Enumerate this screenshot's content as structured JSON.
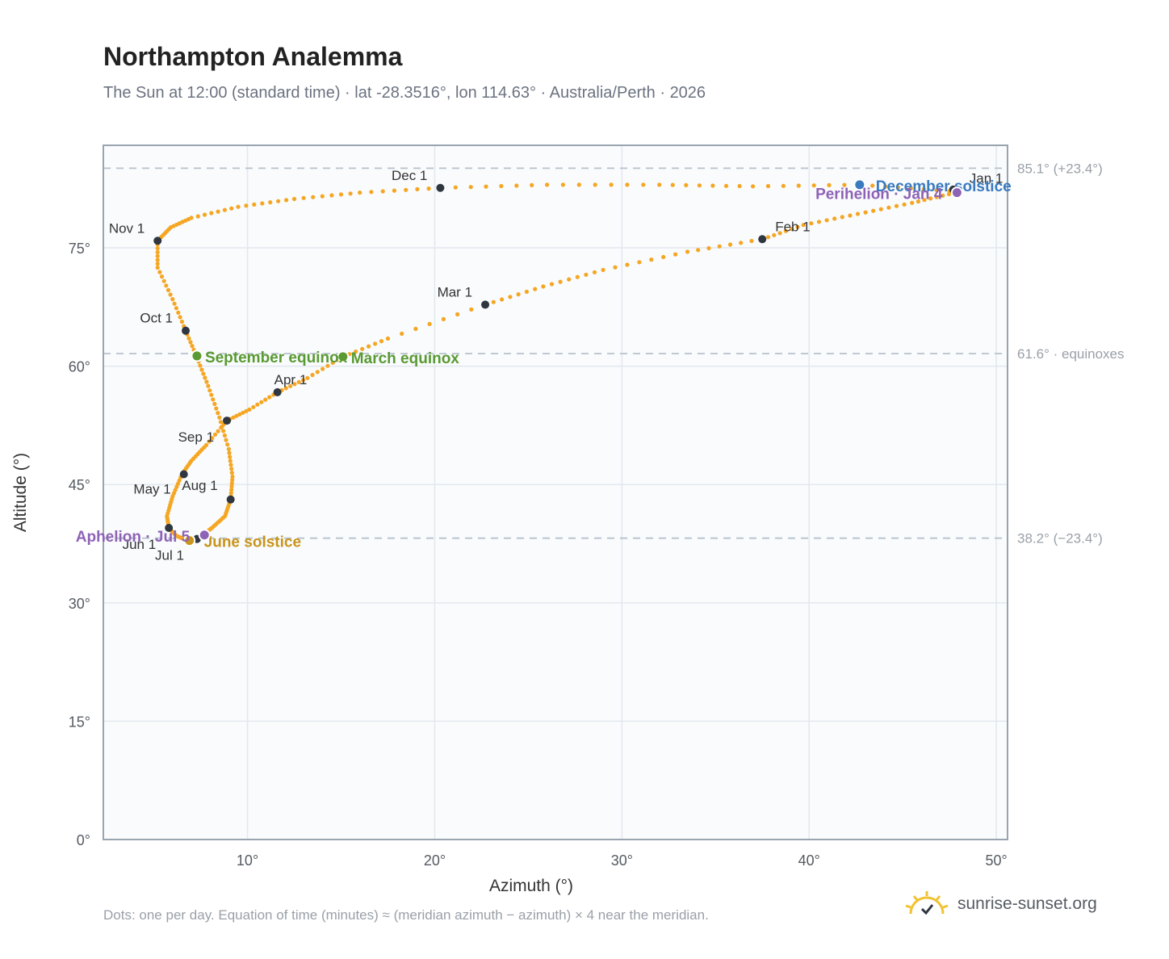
{
  "header": {
    "title": "Northampton Analemma",
    "subtitle": "The Sun at 12:00 (standard time) · lat -28.3516°, lon 114.63° · Australia/Perth · 2026"
  },
  "footer": {
    "note": "Dots: one per day. Equation of time (minutes) ≈ (meridian azimuth − azimuth) × 4 near the meridian.",
    "brand": "sunrise-sunset.org"
  },
  "colors": {
    "curve": "#f5a623",
    "month_marker": "#2f3640",
    "equinox": "#5a9a32",
    "june_solstice": "#c9951a",
    "december_solstice": "#3a7abf",
    "apsis": "#8e63b5",
    "ref_line": "#b8c2cc",
    "plot_bg": "#f9fbfd",
    "grid": "#e3e8ee",
    "frame": "#98a4b0"
  },
  "chart_data": {
    "type": "scatter",
    "xlabel": "Azimuth (°)",
    "ylabel": "Altitude (°)",
    "xlim": [
      2.3,
      50.6
    ],
    "ylim": [
      0,
      88
    ],
    "x_ticks": [
      10,
      20,
      30,
      40,
      50
    ],
    "y_ticks": [
      0,
      15,
      30,
      45,
      60,
      75
    ],
    "x_tick_labels": [
      "10°",
      "20°",
      "30°",
      "40°",
      "50°"
    ],
    "y_tick_labels": [
      "0°",
      "15°",
      "30°",
      "45°",
      "60°",
      "75°"
    ],
    "grid": true,
    "reference_lines": [
      {
        "y": 85.1,
        "label": "85.1° (+23.4°)"
      },
      {
        "y": 61.6,
        "label": "61.6° · equinoxes"
      },
      {
        "y": 38.2,
        "label": "38.2° (−23.4°)"
      }
    ],
    "series": [
      {
        "points": [
          [
            47.8,
            82.0
          ],
          [
            45.5,
            80.7
          ],
          [
            42.6,
            79.3
          ],
          [
            39.7,
            77.9
          ],
          [
            37.5,
            76.1
          ],
          [
            33.5,
            74.5
          ],
          [
            29.0,
            72.2
          ],
          [
            25.8,
            70.1
          ],
          [
            22.7,
            67.8
          ],
          [
            17.5,
            63.5
          ],
          [
            15.1,
            61.2
          ],
          [
            13.2,
            58.5
          ],
          [
            11.6,
            56.7
          ],
          [
            10.1,
            54.5
          ],
          [
            8.9,
            53.1
          ],
          [
            7.8,
            50.0
          ],
          [
            7.0,
            48.0
          ],
          [
            6.5,
            46.3
          ],
          [
            6.0,
            43.5
          ],
          [
            5.7,
            41.0
          ],
          [
            5.8,
            39.5
          ],
          [
            6.2,
            38.5
          ],
          [
            6.8,
            37.9
          ],
          [
            7.2,
            38.1
          ],
          [
            7.6,
            38.6
          ],
          [
            8.1,
            39.5
          ],
          [
            8.8,
            41.0
          ],
          [
            9.1,
            43.1
          ],
          [
            9.2,
            46.0
          ],
          [
            9.0,
            49.5
          ],
          [
            8.5,
            53.5
          ],
          [
            7.9,
            57.5
          ],
          [
            7.3,
            61.1
          ],
          [
            6.7,
            64.5
          ],
          [
            6.0,
            68.5
          ],
          [
            5.2,
            72.5
          ],
          [
            5.2,
            75.9
          ],
          [
            5.9,
            77.6
          ],
          [
            7.0,
            78.8
          ],
          [
            9.5,
            80.2
          ],
          [
            12.5,
            81.2
          ],
          [
            16.0,
            82.0
          ],
          [
            20.3,
            82.6
          ],
          [
            26.0,
            83.0
          ],
          [
            32.0,
            83.0
          ],
          [
            37.0,
            82.8
          ],
          [
            42.7,
            83.0
          ],
          [
            47.5,
            82.2
          ],
          [
            47.9,
            82.0
          ]
        ]
      }
    ],
    "month_markers": [
      {
        "label": "Jan 1",
        "x": 47.7,
        "y": 82.4
      },
      {
        "label": "Feb 1",
        "x": 37.5,
        "y": 76.1
      },
      {
        "label": "Mar 1",
        "x": 22.7,
        "y": 67.8
      },
      {
        "label": "Apr 1",
        "x": 11.6,
        "y": 56.7
      },
      {
        "label": "May 1",
        "x": 6.6,
        "y": 46.3
      },
      {
        "label": "Jun 1",
        "x": 5.8,
        "y": 39.5
      },
      {
        "label": "Jul 1",
        "x": 7.3,
        "y": 38.1
      },
      {
        "label": "Aug 1",
        "x": 9.1,
        "y": 43.1
      },
      {
        "label": "Sep 1",
        "x": 8.9,
        "y": 53.1
      },
      {
        "label": "Oct 1",
        "x": 6.7,
        "y": 64.5
      },
      {
        "label": "Nov 1",
        "x": 5.2,
        "y": 75.9
      },
      {
        "label": "Dec 1",
        "x": 20.3,
        "y": 82.6
      }
    ],
    "events": [
      {
        "label": "March equinox",
        "x": 15.1,
        "y": 61.2,
        "kind": "equinox"
      },
      {
        "label": "September equinox",
        "x": 7.3,
        "y": 61.3,
        "kind": "equinox"
      },
      {
        "label": "June solstice",
        "x": 6.9,
        "y": 37.9,
        "kind": "june_solstice"
      },
      {
        "label": "December solstice",
        "x": 42.7,
        "y": 83.0,
        "kind": "december_solstice"
      },
      {
        "label": "Perihelion · Jan 4",
        "x": 47.9,
        "y": 82.0,
        "kind": "apsis"
      },
      {
        "label": "Aphelion · Jul 5",
        "x": 7.7,
        "y": 38.6,
        "kind": "apsis"
      }
    ]
  }
}
